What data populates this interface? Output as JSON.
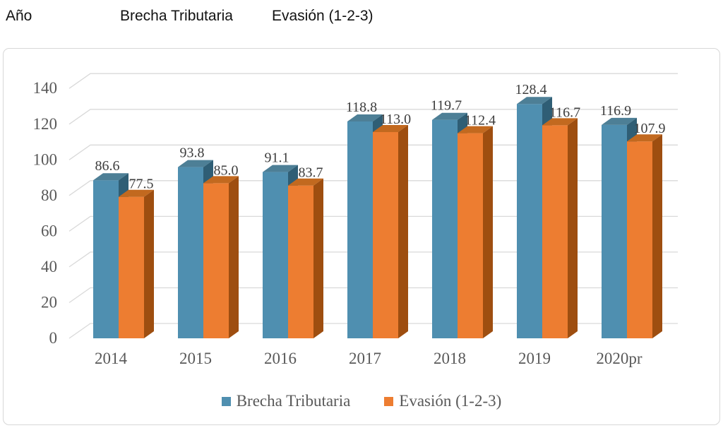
{
  "header": {
    "year_col": "Año",
    "col_brecha": "Brecha Tributaria",
    "col_evasion": "Evasión (1-2-3)"
  },
  "chart_data": {
    "type": "bar",
    "style": "3d-clustered-column",
    "title": "",
    "xlabel": "",
    "ylabel": "",
    "categories": [
      "2014",
      "2015",
      "2016",
      "2017",
      "2018",
      "2019",
      "2020pr"
    ],
    "series": [
      {
        "name": "Brecha Tributaria",
        "values": [
          86.6,
          93.8,
          91.1,
          118.8,
          119.7,
          128.4,
          116.9
        ],
        "color": "#4f8fb0",
        "top_color": "#4d7f96",
        "side_color": "#2f5e75"
      },
      {
        "name": "Evasión (1-2-3)",
        "values": [
          77.5,
          85.0,
          83.7,
          113.0,
          112.4,
          116.7,
          107.9
        ],
        "color": "#ed7d31",
        "top_color": "#c2691f",
        "side_color": "#9e4e10"
      }
    ],
    "y_ticks": [
      0,
      20,
      40,
      60,
      80,
      100,
      120,
      140
    ],
    "ylim": [
      0,
      140
    ],
    "grid": true,
    "grid_color": "#d9d9d9",
    "legend_position": "bottom",
    "data_labels": true,
    "label_decimals": 1
  }
}
